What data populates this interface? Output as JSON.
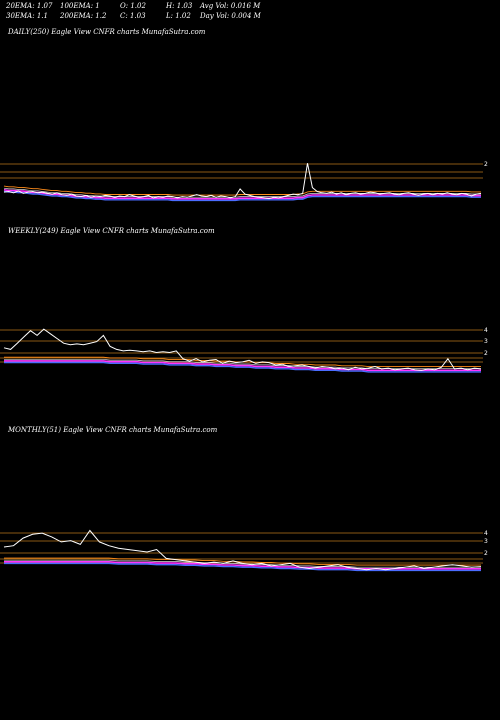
{
  "header": {
    "row1": [
      "20EMA: 1.07",
      "100EMA: 1",
      "O: 1.02",
      "H: 1.03",
      "Avg Vol: 0.016  M"
    ],
    "row2": [
      "30EMA: 1.1",
      "200EMA: 1.2",
      "C: 1.03",
      "L: 1.02",
      "Day Vol: 0.004  M"
    ]
  },
  "colors": {
    "background": "#000000",
    "price": "#ffffff",
    "level_line": "#b8741a",
    "ema_magenta": "#ff33ff",
    "ema_blue": "#4a6cff",
    "ema_orange": "#ff8c1a",
    "ema_white": "#dddddd"
  },
  "chart_data": [
    {
      "type": "line",
      "title": "DAILY(250) Eagle  View  CNFR charts MunafaSutra.com",
      "y_tick_labels": [
        "2"
      ],
      "series": [
        {
          "values": [
            1.05,
            1.06,
            1.04,
            1.07,
            1.03,
            1.05,
            1.06,
            1.04,
            1.05,
            1.03,
            1.02,
            1.04,
            1.01,
            1.0,
            1.02,
            0.99,
            0.98,
            1.0,
            0.97,
            0.99,
            0.98,
            1.0,
            0.99,
            0.97,
            0.99,
            0.98,
            1.01,
            0.99,
            0.97,
            0.98,
            1.0,
            0.96,
            0.98,
            0.97,
            0.99,
            0.98,
            0.96,
            0.98,
            0.97,
            0.99,
            1.01,
            0.99,
            0.98,
            1.0,
            0.97,
            0.99,
            0.98,
            0.96,
            0.98,
            1.1,
            1.02,
            1.0,
            0.98,
            0.97,
            0.96,
            0.95,
            0.97,
            0.96,
            0.98,
            1.0,
            1.02,
            1.01,
            1.03,
            1.5,
            1.12,
            1.06,
            1.04,
            1.03,
            1.05,
            1.02,
            1.04,
            1.01,
            1.03,
            1.04,
            1.02,
            1.03,
            1.05,
            1.04,
            1.02,
            1.03,
            1.04,
            1.02,
            1.01,
            1.03,
            1.04,
            1.02,
            1.0,
            1.02,
            1.03,
            1.01,
            1.03,
            1.02,
            1.04,
            1.02,
            1.01,
            1.03,
            1.02,
            0.99,
            1.02,
            1.03
          ]
        },
        {
          "values": [
            1.12,
            1.11,
            1.11,
            1.1,
            1.1,
            1.09,
            1.08,
            1.08,
            1.07,
            1.06,
            1.05,
            1.05,
            1.04,
            1.04,
            1.03,
            1.02,
            1.02,
            1.01,
            1.01,
            1.0,
            1.0,
            0.99,
            0.99,
            0.99,
            0.99,
            0.99,
            0.99,
            0.99,
            0.99,
            0.99,
            0.99,
            0.99,
            0.99,
            0.99,
            0.99,
            0.98,
            0.98,
            0.98,
            0.98,
            0.98,
            0.98,
            0.98,
            0.98,
            0.98,
            0.98,
            0.98,
            0.98,
            0.98,
            0.98,
            0.99,
            0.99,
            0.99,
            0.99,
            0.99,
            0.99,
            0.99,
            0.99,
            0.99,
            0.99,
            0.99,
            0.99,
            1.0,
            1.0,
            1.03,
            1.04,
            1.04,
            1.04,
            1.04,
            1.04,
            1.04,
            1.04,
            1.04,
            1.04,
            1.04,
            1.04,
            1.04,
            1.04,
            1.04,
            1.04,
            1.04,
            1.04,
            1.04,
            1.04,
            1.04,
            1.04,
            1.04,
            1.04,
            1.04,
            1.04,
            1.04,
            1.04,
            1.04,
            1.04,
            1.04,
            1.04,
            1.04,
            1.04,
            1.03,
            1.03,
            1.03
          ]
        }
      ]
    },
    {
      "type": "line",
      "title": "WEEKLY(249) Eagle  View  CNFR charts MunafaSutra.com",
      "y_tick_labels": [
        "4",
        "3",
        "2"
      ],
      "series": [
        {
          "values": [
            2.3,
            2.2,
            2.6,
            3.0,
            3.4,
            3.1,
            3.5,
            3.2,
            2.9,
            2.6,
            2.5,
            2.55,
            2.5,
            2.6,
            2.7,
            3.1,
            2.4,
            2.2,
            2.1,
            2.15,
            2.1,
            2.05,
            2.1,
            2.0,
            2.05,
            2.0,
            2.1,
            1.6,
            1.45,
            1.6,
            1.4,
            1.5,
            1.55,
            1.3,
            1.45,
            1.35,
            1.4,
            1.5,
            1.3,
            1.4,
            1.35,
            1.2,
            1.25,
            1.1,
            1.15,
            1.2,
            1.1,
            1.0,
            1.1,
            1.05,
            0.95,
            1.0,
            0.9,
            1.05,
            0.95,
            1.0,
            1.1,
            0.95,
            1.0,
            0.9,
            0.95,
            1.0,
            0.9,
            0.85,
            0.95,
            0.9,
            1.05,
            1.6,
            0.95,
            1.0,
            0.9,
            1.0,
            0.95
          ]
        },
        {
          "values": [
            1.6,
            1.6,
            1.6,
            1.6,
            1.6,
            1.6,
            1.6,
            1.6,
            1.6,
            1.6,
            1.6,
            1.6,
            1.6,
            1.6,
            1.6,
            1.6,
            1.55,
            1.55,
            1.55,
            1.55,
            1.55,
            1.5,
            1.5,
            1.5,
            1.5,
            1.45,
            1.45,
            1.45,
            1.45,
            1.4,
            1.4,
            1.4,
            1.35,
            1.35,
            1.35,
            1.3,
            1.3,
            1.3,
            1.25,
            1.25,
            1.25,
            1.2,
            1.2,
            1.2,
            1.15,
            1.15,
            1.15,
            1.1,
            1.1,
            1.1,
            1.1,
            1.05,
            1.05,
            1.05,
            1.05,
            1.0,
            1.0,
            1.0,
            1.0,
            1.0,
            1.0,
            1.0,
            1.0,
            1.0,
            1.0,
            1.0,
            1.0,
            1.0,
            1.0,
            1.0,
            1.0,
            1.0,
            1.0
          ]
        }
      ]
    },
    {
      "type": "line",
      "title": "MONTHLY(51) Eagle  View  CNFR charts MunafaSutra.com",
      "y_tick_labels": [
        "4",
        "3",
        "2"
      ],
      "series": [
        {
          "values": [
            2.5,
            2.6,
            3.2,
            3.5,
            3.6,
            3.3,
            2.9,
            3.0,
            2.7,
            3.8,
            2.9,
            2.6,
            2.4,
            2.3,
            2.2,
            2.1,
            2.3,
            1.6,
            1.5,
            1.4,
            1.3,
            1.2,
            1.3,
            1.2,
            1.4,
            1.2,
            1.1,
            1.2,
            1.0,
            1.1,
            1.2,
            0.9,
            0.8,
            0.9,
            1.0,
            1.1,
            0.9,
            0.8,
            0.7,
            0.8,
            0.7,
            0.8,
            0.9,
            1.0,
            0.8,
            0.9,
            1.0,
            1.1,
            1.0,
            0.9,
            0.95
          ]
        },
        {
          "values": [
            1.5,
            1.5,
            1.5,
            1.5,
            1.5,
            1.5,
            1.5,
            1.5,
            1.5,
            1.5,
            1.5,
            1.5,
            1.45,
            1.45,
            1.45,
            1.45,
            1.4,
            1.4,
            1.4,
            1.35,
            1.35,
            1.3,
            1.3,
            1.25,
            1.25,
            1.2,
            1.2,
            1.15,
            1.15,
            1.1,
            1.1,
            1.05,
            1.05,
            1.0,
            1.0,
            1.0,
            1.0,
            0.95,
            0.95,
            0.95,
            0.95,
            0.95,
            0.95,
            0.95,
            0.95,
            0.95,
            0.95,
            0.95,
            0.95,
            0.95,
            0.95
          ]
        }
      ]
    }
  ]
}
